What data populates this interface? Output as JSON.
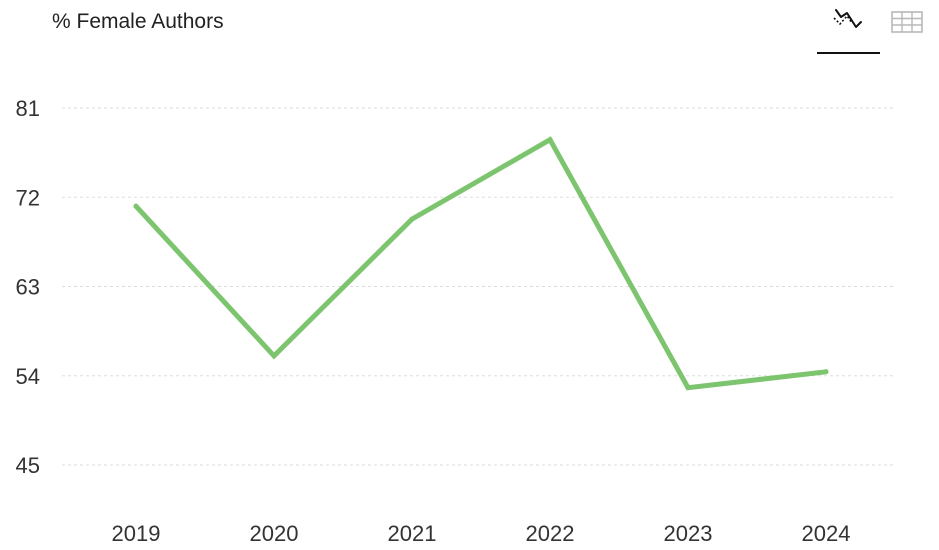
{
  "toolbar": {
    "chart_view_icon": "line-chart-icon",
    "table_view_icon": "table-grid-icon",
    "active_tab": "chart"
  },
  "colors": {
    "line": "#7cc56e",
    "grid": "#dddddd",
    "active_underline": "#111111",
    "inactive_icon": "#b8b8b8"
  },
  "chart_data": {
    "type": "line",
    "title": "% Female Authors",
    "xlabel": "",
    "ylabel": "",
    "categories": [
      "2019",
      "2020",
      "2021",
      "2022",
      "2023",
      "2024"
    ],
    "series": [
      {
        "values": [
          71.1,
          56.0,
          69.8,
          77.8,
          52.8,
          54.4
        ]
      }
    ],
    "ylim": [
      40,
      81
    ],
    "yticks": [
      45,
      54,
      63,
      72,
      81
    ],
    "grid": true,
    "legend": "none"
  }
}
